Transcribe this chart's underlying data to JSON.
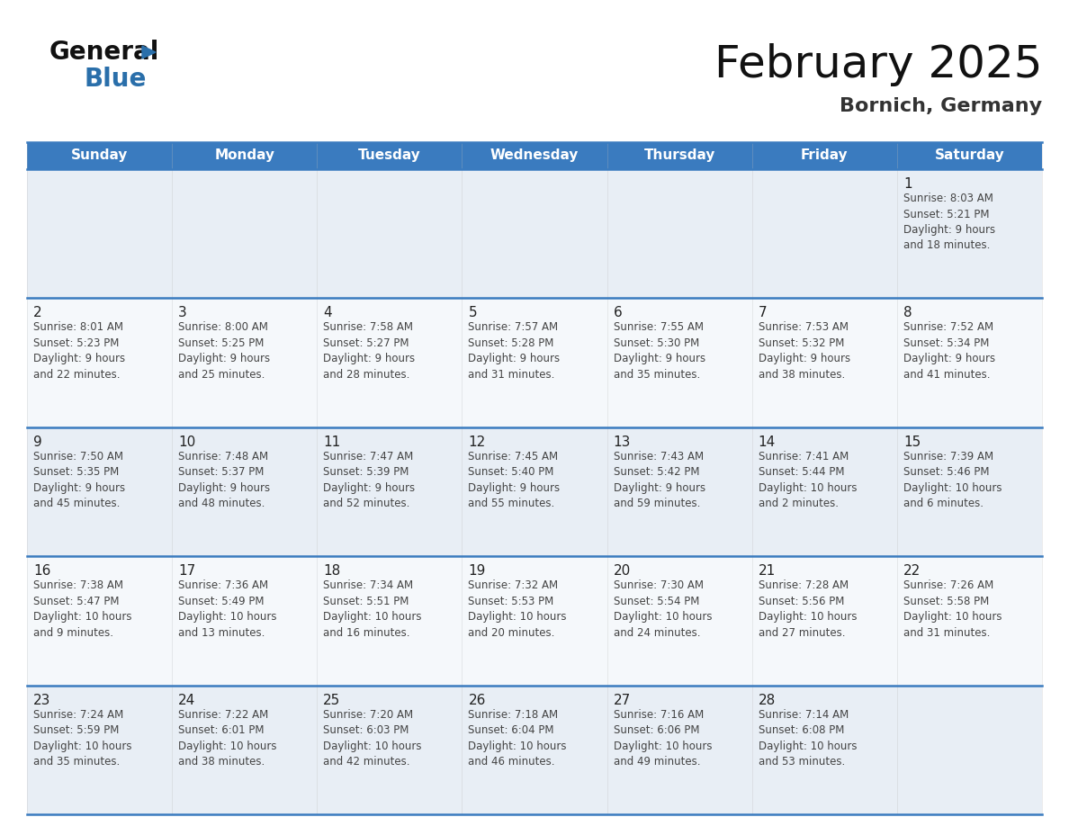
{
  "title": "February 2025",
  "subtitle": "Bornich, Germany",
  "header_bg": "#3a7bbf",
  "header_text_color": "#ffffff",
  "cell_bg_light": "#e8eef5",
  "cell_bg_white": "#f5f8fb",
  "grid_line_color": "#3a7bbf",
  "text_color": "#444444",
  "day_num_color": "#222222",
  "weekdays": [
    "Sunday",
    "Monday",
    "Tuesday",
    "Wednesday",
    "Thursday",
    "Friday",
    "Saturday"
  ],
  "calendar_data": [
    [
      {
        "day": null,
        "info": null
      },
      {
        "day": null,
        "info": null
      },
      {
        "day": null,
        "info": null
      },
      {
        "day": null,
        "info": null
      },
      {
        "day": null,
        "info": null
      },
      {
        "day": null,
        "info": null
      },
      {
        "day": 1,
        "info": "Sunrise: 8:03 AM\nSunset: 5:21 PM\nDaylight: 9 hours\nand 18 minutes."
      }
    ],
    [
      {
        "day": 2,
        "info": "Sunrise: 8:01 AM\nSunset: 5:23 PM\nDaylight: 9 hours\nand 22 minutes."
      },
      {
        "day": 3,
        "info": "Sunrise: 8:00 AM\nSunset: 5:25 PM\nDaylight: 9 hours\nand 25 minutes."
      },
      {
        "day": 4,
        "info": "Sunrise: 7:58 AM\nSunset: 5:27 PM\nDaylight: 9 hours\nand 28 minutes."
      },
      {
        "day": 5,
        "info": "Sunrise: 7:57 AM\nSunset: 5:28 PM\nDaylight: 9 hours\nand 31 minutes."
      },
      {
        "day": 6,
        "info": "Sunrise: 7:55 AM\nSunset: 5:30 PM\nDaylight: 9 hours\nand 35 minutes."
      },
      {
        "day": 7,
        "info": "Sunrise: 7:53 AM\nSunset: 5:32 PM\nDaylight: 9 hours\nand 38 minutes."
      },
      {
        "day": 8,
        "info": "Sunrise: 7:52 AM\nSunset: 5:34 PM\nDaylight: 9 hours\nand 41 minutes."
      }
    ],
    [
      {
        "day": 9,
        "info": "Sunrise: 7:50 AM\nSunset: 5:35 PM\nDaylight: 9 hours\nand 45 minutes."
      },
      {
        "day": 10,
        "info": "Sunrise: 7:48 AM\nSunset: 5:37 PM\nDaylight: 9 hours\nand 48 minutes."
      },
      {
        "day": 11,
        "info": "Sunrise: 7:47 AM\nSunset: 5:39 PM\nDaylight: 9 hours\nand 52 minutes."
      },
      {
        "day": 12,
        "info": "Sunrise: 7:45 AM\nSunset: 5:40 PM\nDaylight: 9 hours\nand 55 minutes."
      },
      {
        "day": 13,
        "info": "Sunrise: 7:43 AM\nSunset: 5:42 PM\nDaylight: 9 hours\nand 59 minutes."
      },
      {
        "day": 14,
        "info": "Sunrise: 7:41 AM\nSunset: 5:44 PM\nDaylight: 10 hours\nand 2 minutes."
      },
      {
        "day": 15,
        "info": "Sunrise: 7:39 AM\nSunset: 5:46 PM\nDaylight: 10 hours\nand 6 minutes."
      }
    ],
    [
      {
        "day": 16,
        "info": "Sunrise: 7:38 AM\nSunset: 5:47 PM\nDaylight: 10 hours\nand 9 minutes."
      },
      {
        "day": 17,
        "info": "Sunrise: 7:36 AM\nSunset: 5:49 PM\nDaylight: 10 hours\nand 13 minutes."
      },
      {
        "day": 18,
        "info": "Sunrise: 7:34 AM\nSunset: 5:51 PM\nDaylight: 10 hours\nand 16 minutes."
      },
      {
        "day": 19,
        "info": "Sunrise: 7:32 AM\nSunset: 5:53 PM\nDaylight: 10 hours\nand 20 minutes."
      },
      {
        "day": 20,
        "info": "Sunrise: 7:30 AM\nSunset: 5:54 PM\nDaylight: 10 hours\nand 24 minutes."
      },
      {
        "day": 21,
        "info": "Sunrise: 7:28 AM\nSunset: 5:56 PM\nDaylight: 10 hours\nand 27 minutes."
      },
      {
        "day": 22,
        "info": "Sunrise: 7:26 AM\nSunset: 5:58 PM\nDaylight: 10 hours\nand 31 minutes."
      }
    ],
    [
      {
        "day": 23,
        "info": "Sunrise: 7:24 AM\nSunset: 5:59 PM\nDaylight: 10 hours\nand 35 minutes."
      },
      {
        "day": 24,
        "info": "Sunrise: 7:22 AM\nSunset: 6:01 PM\nDaylight: 10 hours\nand 38 minutes."
      },
      {
        "day": 25,
        "info": "Sunrise: 7:20 AM\nSunset: 6:03 PM\nDaylight: 10 hours\nand 42 minutes."
      },
      {
        "day": 26,
        "info": "Sunrise: 7:18 AM\nSunset: 6:04 PM\nDaylight: 10 hours\nand 46 minutes."
      },
      {
        "day": 27,
        "info": "Sunrise: 7:16 AM\nSunset: 6:06 PM\nDaylight: 10 hours\nand 49 minutes."
      },
      {
        "day": 28,
        "info": "Sunrise: 7:14 AM\nSunset: 6:08 PM\nDaylight: 10 hours\nand 53 minutes."
      },
      {
        "day": null,
        "info": null
      }
    ]
  ],
  "logo_general_color": "#111111",
  "logo_blue_color": "#2a6faa",
  "logo_triangle_color": "#2a6faa",
  "title_fontsize": 36,
  "subtitle_fontsize": 16,
  "header_fontsize": 11,
  "day_num_fontsize": 11,
  "cell_text_fontsize": 8.5
}
